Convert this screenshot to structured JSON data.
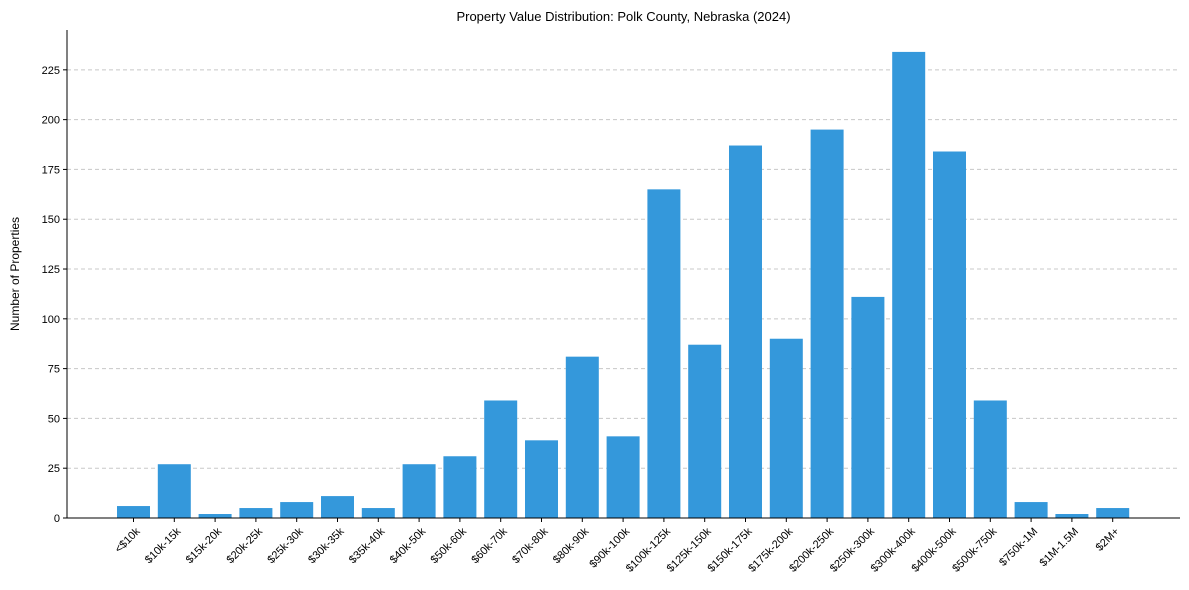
{
  "chart_data": {
    "type": "bar",
    "title": "Property Value Distribution: Polk County, Nebraska (2024)",
    "xlabel": "",
    "ylabel": "Number of Properties",
    "ylim": [
      0,
      245
    ],
    "yticks": [
      0,
      25,
      50,
      75,
      100,
      125,
      150,
      175,
      200,
      225
    ],
    "grid": "y-dashed",
    "bar_color": "#3498db",
    "categories": [
      "<$10k",
      "$10k-15k",
      "$15k-20k",
      "$20k-25k",
      "$25k-30k",
      "$30k-35k",
      "$35k-40k",
      "$40k-50k",
      "$50k-60k",
      "$60k-70k",
      "$70k-80k",
      "$80k-90k",
      "$90k-100k",
      "$100k-125k",
      "$125k-150k",
      "$150k-175k",
      "$175k-200k",
      "$200k-250k",
      "$250k-300k",
      "$300k-400k",
      "$400k-500k",
      "$500k-750k",
      "$750k-1M",
      "$1M-1.5M",
      "$2M+"
    ],
    "values": [
      6,
      27,
      2,
      5,
      8,
      11,
      5,
      27,
      31,
      59,
      39,
      81,
      41,
      165,
      87,
      187,
      90,
      195,
      111,
      234,
      184,
      59,
      8,
      2,
      5
    ]
  }
}
